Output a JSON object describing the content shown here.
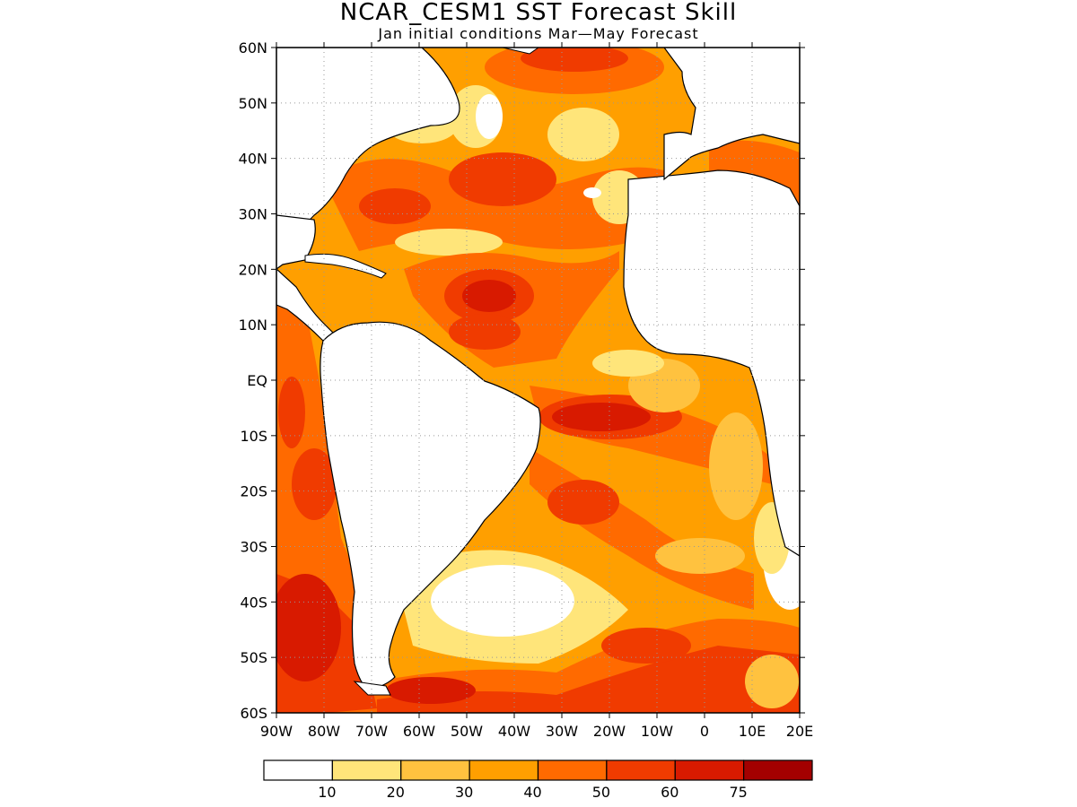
{
  "title": "NCAR_CESM1 SST Forecast Skill",
  "subtitle": "Jan initial conditions  Mar—May Forecast",
  "map": {
    "lon_range": [
      -90,
      20
    ],
    "lat_range": [
      -60,
      60
    ],
    "grid": "dotted",
    "lat_labels": [
      "60N",
      "50N",
      "40N",
      "30N",
      "20N",
      "10N",
      "EQ",
      "10S",
      "20S",
      "30S",
      "40S",
      "50S",
      "60S"
    ],
    "lon_labels": [
      "90W",
      "80W",
      "70W",
      "60W",
      "50W",
      "40W",
      "30W",
      "20W",
      "10W",
      "0",
      "10E",
      "20E"
    ]
  },
  "colorbar": {
    "levels": [
      "10",
      "20",
      "30",
      "40",
      "50",
      "60",
      "75"
    ],
    "colors": [
      "#ffffff",
      "#ffe57a",
      "#ffc23f",
      "#ff9f00",
      "#ff6a00",
      "#f03b00",
      "#d81a00",
      "#a30000"
    ]
  }
}
